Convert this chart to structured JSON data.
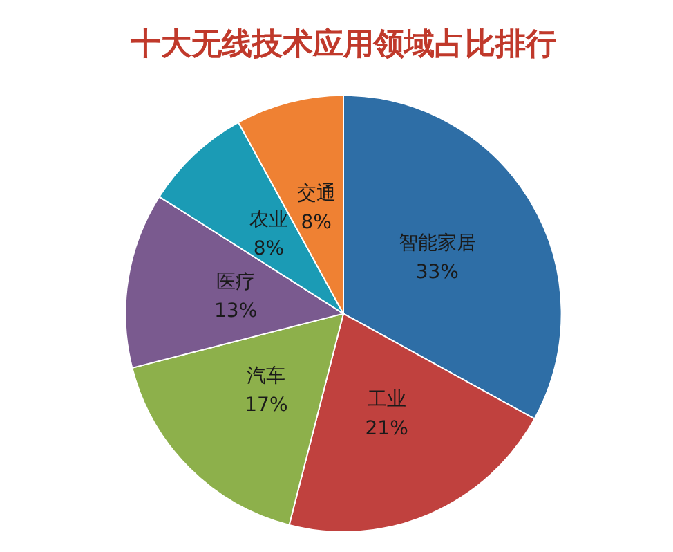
{
  "chart_data": {
    "type": "pie",
    "title": "十大无线技术应用领域占比排行",
    "categories": [
      "智能家居",
      "工业",
      "汽车",
      "医疗",
      "农业",
      "交通"
    ],
    "values": [
      33,
      21,
      17,
      13,
      8,
      8
    ],
    "value_labels": [
      "33%",
      "21%",
      "17%",
      "13%",
      "8%",
      "8%"
    ],
    "colors": [
      "#2e6ea6",
      "#c0413e",
      "#8db04b",
      "#7a5a8f",
      "#1b9bb5",
      "#ef8133"
    ],
    "legend": false
  }
}
